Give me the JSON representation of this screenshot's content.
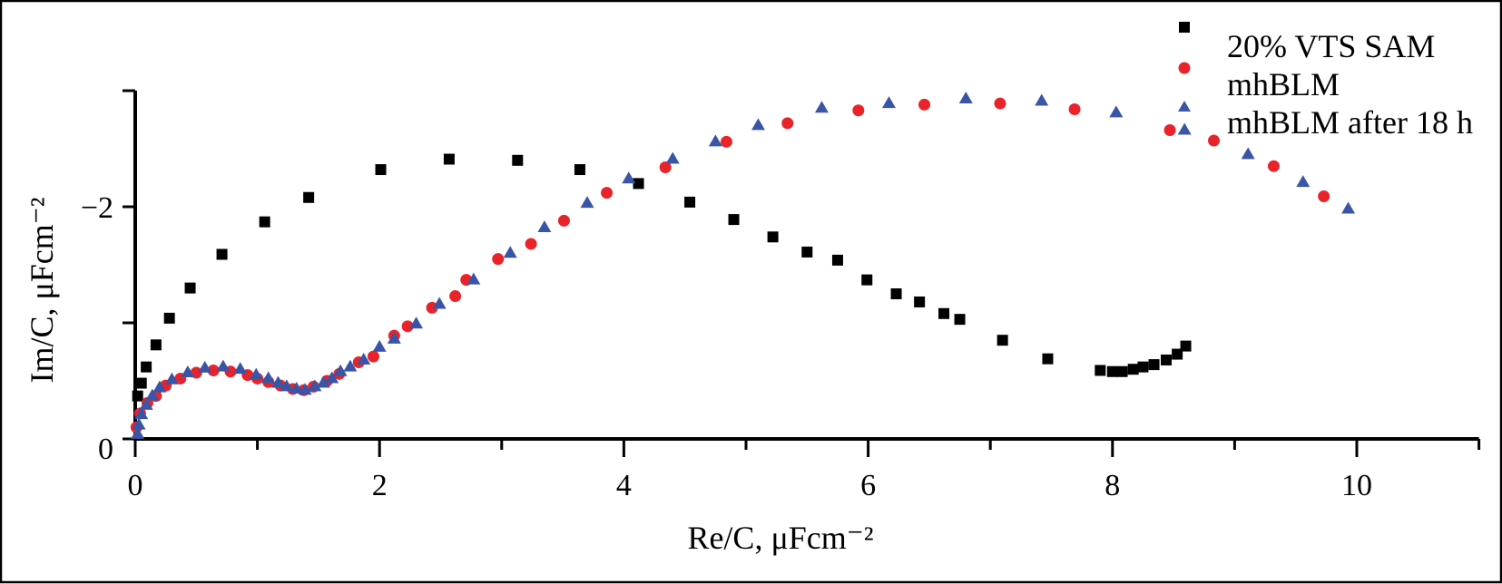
{
  "chart_data": {
    "type": "scatter",
    "title": "",
    "xlabel": "Re/C, μFcm⁻²",
    "ylabel": "Im/C, μFcm⁻²",
    "xlim": [
      0,
      11
    ],
    "ylim": [
      0,
      -3
    ],
    "y_inverted": true,
    "grid": false,
    "legend_position": "top-right",
    "xticks": [
      {
        "value": 0,
        "label": "0"
      },
      {
        "value": 2,
        "label": "2"
      },
      {
        "value": 4,
        "label": "4"
      },
      {
        "value": 6,
        "label": "6"
      },
      {
        "value": 8,
        "label": "8"
      },
      {
        "value": 10,
        "label": "10"
      }
    ],
    "xminor": [
      1,
      3,
      5,
      7,
      9,
      11
    ],
    "yticks": [
      {
        "value": 0,
        "label": "0"
      },
      {
        "value": -2,
        "label": "−2"
      }
    ],
    "yminor": [
      -1,
      -3
    ],
    "series": [
      {
        "name": "20% VTS SAM",
        "marker": "square",
        "color": "#000000",
        "x": [
          0.02,
          0.05,
          0.09,
          0.17,
          0.28,
          0.45,
          0.71,
          1.06,
          1.42,
          2.01,
          2.57,
          3.13,
          3.64,
          4.12,
          4.54,
          4.9,
          5.22,
          5.5,
          5.75,
          5.99,
          6.23,
          6.42,
          6.62,
          6.75,
          7.1,
          7.47,
          7.9,
          8.0,
          8.08,
          8.17,
          8.25,
          8.34,
          8.44,
          8.53,
          8.6
        ],
        "y": [
          -0.37,
          -0.48,
          -0.62,
          -0.81,
          -1.04,
          -1.3,
          -1.59,
          -1.87,
          -2.08,
          -2.32,
          -2.41,
          -2.4,
          -2.32,
          -2.2,
          -2.04,
          -1.89,
          -1.74,
          -1.61,
          -1.54,
          -1.37,
          -1.25,
          -1.18,
          -1.08,
          -1.03,
          -0.85,
          -0.69,
          -0.59,
          -0.58,
          -0.58,
          -0.6,
          -0.62,
          -0.64,
          -0.68,
          -0.73,
          -0.8
        ]
      },
      {
        "name": "mhBLM",
        "marker": "circle",
        "color": "#e8242a",
        "x": [
          0.01,
          0.04,
          0.1,
          0.17,
          0.25,
          0.37,
          0.5,
          0.64,
          0.78,
          0.92,
          1.0,
          1.09,
          1.19,
          1.29,
          1.38,
          1.46,
          1.57,
          1.67,
          1.83,
          1.95,
          2.12,
          2.23,
          2.43,
          2.62,
          2.71,
          2.97,
          3.24,
          3.51,
          3.86,
          4.34,
          4.84,
          5.34,
          5.92,
          6.46,
          7.08,
          7.69,
          8.47,
          8.83,
          9.32,
          9.73
        ],
        "y": [
          -0.1,
          -0.22,
          -0.31,
          -0.37,
          -0.46,
          -0.52,
          -0.57,
          -0.59,
          -0.58,
          -0.55,
          -0.52,
          -0.49,
          -0.46,
          -0.43,
          -0.42,
          -0.45,
          -0.5,
          -0.56,
          -0.66,
          -0.71,
          -0.89,
          -0.97,
          -1.13,
          -1.23,
          -1.37,
          -1.55,
          -1.68,
          -1.88,
          -2.12,
          -2.34,
          -2.56,
          -2.72,
          -2.83,
          -2.88,
          -2.89,
          -2.84,
          -2.66,
          -2.57,
          -2.35,
          -2.09
        ]
      },
      {
        "name": "mhBLM after 18 h",
        "marker": "triangle",
        "color": "#3a55a5",
        "x": [
          0.02,
          0.03,
          0.05,
          0.09,
          0.14,
          0.2,
          0.3,
          0.43,
          0.57,
          0.72,
          0.86,
          0.99,
          1.09,
          1.17,
          1.24,
          1.32,
          1.39,
          1.47,
          1.54,
          1.61,
          1.68,
          1.76,
          1.87,
          2.0,
          2.12,
          2.3,
          2.49,
          2.77,
          3.07,
          3.35,
          3.7,
          4.04,
          4.4,
          4.75,
          5.1,
          5.62,
          6.17,
          6.8,
          7.42,
          8.03,
          8.59,
          9.11,
          9.56,
          9.93
        ],
        "y": [
          -0.04,
          -0.12,
          -0.21,
          -0.29,
          -0.37,
          -0.44,
          -0.51,
          -0.57,
          -0.61,
          -0.62,
          -0.6,
          -0.55,
          -0.52,
          -0.48,
          -0.45,
          -0.43,
          -0.42,
          -0.45,
          -0.48,
          -0.52,
          -0.58,
          -0.62,
          -0.68,
          -0.79,
          -0.86,
          -0.99,
          -1.16,
          -1.37,
          -1.6,
          -1.82,
          -2.03,
          -2.24,
          -2.41,
          -2.56,
          -2.7,
          -2.85,
          -2.89,
          -2.93,
          -2.91,
          -2.81,
          -2.66,
          -2.45,
          -2.21,
          -1.98
        ]
      }
    ]
  }
}
